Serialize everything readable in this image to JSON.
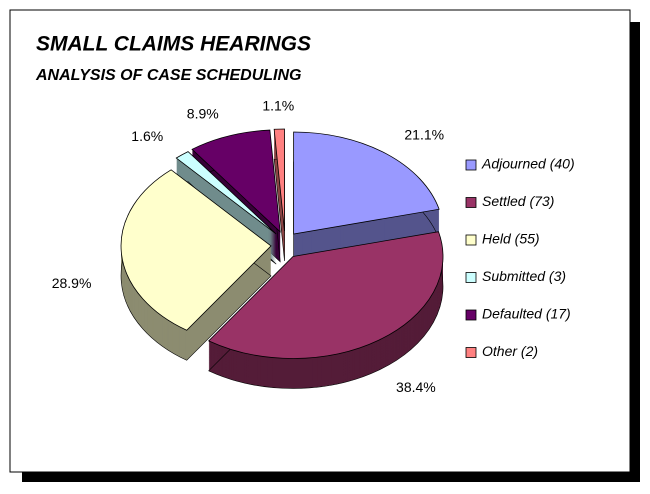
{
  "chart_data": {
    "type": "pie3d",
    "title": "SMALL CLAIMS HEARINGS",
    "subtitle": "ANALYSIS OF CASE SCHEDULING",
    "categories": [
      "Adjourned (40)",
      "Settled (73)",
      "Held (55)",
      "Submitted (3)",
      "Defaulted (17)",
      "Other (2)"
    ],
    "values": [
      21.1,
      38.4,
      28.9,
      1.6,
      8.9,
      1.1
    ],
    "value_labels": [
      "21.1%",
      "38.4%",
      "28.9%",
      "1.6%",
      "8.9%",
      "1.1%"
    ],
    "colors": [
      "#9999ff",
      "#993366",
      "#ffffcc",
      "#ccffff",
      "#660066",
      "#ff8080"
    ],
    "legend": "right"
  }
}
